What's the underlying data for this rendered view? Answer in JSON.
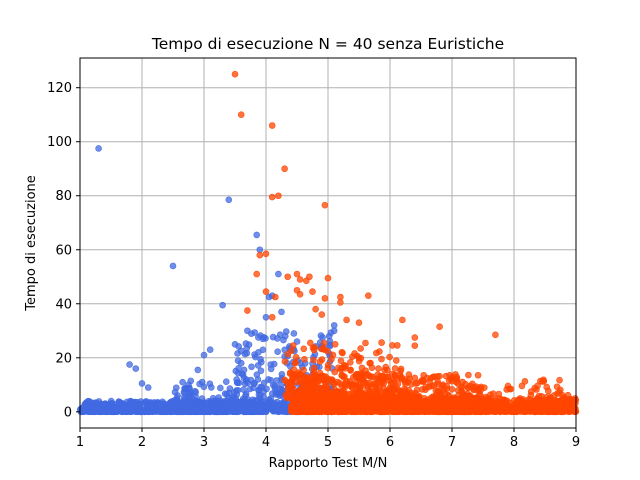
{
  "chart_data": {
    "type": "scatter",
    "title": "Tempo di esecuzione N = 40 senza Euristiche",
    "xlabel": "Rapporto Test M/N",
    "ylabel": "Tempo di esecuzione",
    "xlim": [
      1,
      9
    ],
    "ylim": [
      -6,
      131
    ],
    "xticks": [
      "1",
      "2",
      "3",
      "4",
      "5",
      "6",
      "7",
      "8",
      "9"
    ],
    "yticks": [
      "0",
      "20",
      "40",
      "60",
      "80",
      "100",
      "120"
    ],
    "grid": true,
    "legend": "none",
    "colors": {
      "blue": "#4169e1",
      "orange": "#ff4500",
      "background": "#ffffff",
      "grid": "#b0b0b0"
    },
    "series": [
      {
        "color": "#4169e1",
        "description": "blue points",
        "points": [
          [
            1.3,
            97.5
          ],
          [
            1.8,
            17.5
          ],
          [
            1.9,
            16
          ],
          [
            2.0,
            10.5
          ],
          [
            2.1,
            9
          ],
          [
            2.5,
            54
          ],
          [
            2.75,
            10
          ],
          [
            2.9,
            15.5
          ],
          [
            3.0,
            21
          ],
          [
            3.1,
            23
          ],
          [
            3.3,
            39.5
          ],
          [
            3.4,
            78.5
          ],
          [
            3.5,
            25
          ],
          [
            3.6,
            22.5
          ],
          [
            3.6,
            18
          ],
          [
            3.7,
            30
          ],
          [
            3.85,
            65.5
          ],
          [
            3.9,
            60
          ],
          [
            3.95,
            27
          ],
          [
            4.0,
            35
          ],
          [
            4.05,
            42.5
          ],
          [
            4.1,
            43
          ],
          [
            4.2,
            51
          ],
          [
            4.25,
            37
          ],
          [
            4.3,
            20.5
          ],
          [
            4.45,
            29
          ],
          [
            4.5,
            26
          ],
          [
            5.1,
            32
          ],
          [
            5.1,
            30
          ]
        ],
        "dense_bands": [
          {
            "x": [
              1.0,
              4.0
            ],
            "y": [
              0,
              4
            ],
            "count": 900
          },
          {
            "x": [
              2.5,
              4.8
            ],
            "y": [
              0,
              12
            ],
            "count": 260
          },
          {
            "x": [
              3.5,
              5.1
            ],
            "y": [
              0,
              30
            ],
            "count": 220
          }
        ]
      },
      {
        "color": "#ff4500",
        "description": "orange points",
        "points": [
          [
            3.5,
            125
          ],
          [
            3.6,
            110
          ],
          [
            4.1,
            106
          ],
          [
            4.3,
            90
          ],
          [
            4.1,
            79.5
          ],
          [
            4.2,
            80
          ],
          [
            4.95,
            76.5
          ],
          [
            3.9,
            58
          ],
          [
            4.0,
            58.5
          ],
          [
            3.85,
            51
          ],
          [
            4.35,
            50
          ],
          [
            4.5,
            51
          ],
          [
            4.55,
            49
          ],
          [
            4.65,
            48.5
          ],
          [
            4.7,
            50
          ],
          [
            5.0,
            49.5
          ],
          [
            4.0,
            44.5
          ],
          [
            4.15,
            42.5
          ],
          [
            4.5,
            45
          ],
          [
            4.55,
            43.5
          ],
          [
            4.75,
            44.5
          ],
          [
            4.95,
            42
          ],
          [
            5.2,
            42.5
          ],
          [
            5.2,
            40.5
          ],
          [
            5.65,
            43
          ],
          [
            3.7,
            37.5
          ],
          [
            4.1,
            35
          ],
          [
            6.2,
            34
          ],
          [
            6.8,
            31.5
          ],
          [
            7.7,
            28.5
          ],
          [
            4.8,
            38
          ],
          [
            4.9,
            36
          ],
          [
            5.3,
            34
          ],
          [
            5.5,
            33
          ],
          [
            6.4,
            27.5
          ],
          [
            6.4,
            24.5
          ]
        ],
        "dense_bands": [
          {
            "x": [
              4.4,
              9.0
            ],
            "y": [
              0,
              5
            ],
            "count": 1100
          },
          {
            "x": [
              4.4,
              7.5
            ],
            "y": [
              0,
              14
            ],
            "count": 650
          },
          {
            "x": [
              4.3,
              6.2
            ],
            "y": [
              5,
              26
            ],
            "count": 280
          },
          {
            "x": [
              6.0,
              9.0
            ],
            "y": [
              3,
              12
            ],
            "count": 160
          }
        ]
      }
    ]
  }
}
